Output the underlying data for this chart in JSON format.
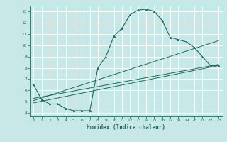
{
  "xlabel": "Humidex (Indice chaleur)",
  "bg_color": "#c8e8e8",
  "grid_color": "#ffffff",
  "line_color": "#1a6b5a",
  "xlim": [
    -0.5,
    23.5
  ],
  "ylim": [
    3.7,
    13.5
  ],
  "xticks": [
    0,
    1,
    2,
    3,
    4,
    5,
    6,
    7,
    8,
    9,
    10,
    11,
    12,
    13,
    14,
    15,
    16,
    17,
    18,
    19,
    20,
    21,
    22,
    23
  ],
  "yticks": [
    4,
    5,
    6,
    7,
    8,
    9,
    10,
    11,
    12,
    13
  ],
  "main_x": [
    0,
    1,
    2,
    3,
    4,
    5,
    6,
    7,
    8,
    9,
    10,
    11,
    12,
    13,
    14,
    15,
    16,
    17,
    18,
    19,
    20,
    21,
    22,
    23
  ],
  "main_y": [
    6.5,
    5.2,
    4.8,
    4.8,
    4.4,
    4.2,
    4.2,
    4.2,
    8.0,
    9.0,
    10.8,
    11.5,
    12.7,
    13.1,
    13.2,
    13.0,
    12.2,
    10.7,
    10.5,
    10.3,
    9.8,
    9.0,
    8.2,
    8.2
  ],
  "line2_x": [
    0,
    23
  ],
  "line2_y": [
    4.9,
    8.2
  ],
  "line3_x": [
    0,
    23
  ],
  "line3_y": [
    5.1,
    10.4
  ],
  "line4_x": [
    0,
    23
  ],
  "line4_y": [
    5.3,
    8.3
  ]
}
